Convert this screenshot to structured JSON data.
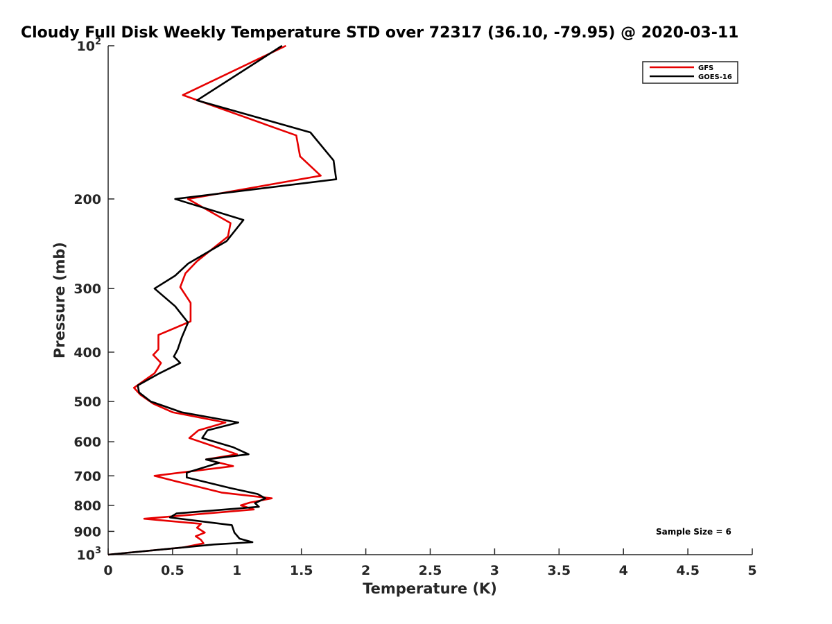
{
  "chart_data": {
    "type": "line",
    "title": "Cloudy Full Disk Weekly Temperature STD over 72317 (36.10, -79.95) @ 2020-03-11",
    "xlabel": "Temperature (K)",
    "ylabel": "Pressure (mb)",
    "xlim": [
      0,
      5
    ],
    "ylim": [
      1000,
      100
    ],
    "yscale": "log",
    "y_reversed": true,
    "x_ticks": [
      "0",
      "0.5",
      "1",
      "1.5",
      "2",
      "2.5",
      "3",
      "3.5",
      "4",
      "4.5",
      "5"
    ],
    "y_ticks": [
      {
        "value": 100,
        "label": "10",
        "sup": "2"
      },
      {
        "value": 200,
        "label": "200"
      },
      {
        "value": 300,
        "label": "300"
      },
      {
        "value": 400,
        "label": "400"
      },
      {
        "value": 500,
        "label": "500"
      },
      {
        "value": 600,
        "label": "600"
      },
      {
        "value": 700,
        "label": "700"
      },
      {
        "value": 800,
        "label": "800"
      },
      {
        "value": 900,
        "label": "900"
      },
      {
        "value": 1000,
        "label": "10",
        "sup": "3"
      }
    ],
    "grid": false,
    "legend_position": "top-right",
    "annotation": "Sample Size = 6",
    "series": [
      {
        "name": "GFS",
        "color": "#e60000",
        "points": [
          [
            1.38,
            100
          ],
          [
            0.58,
            125
          ],
          [
            1.46,
            150
          ],
          [
            1.49,
            165
          ],
          [
            1.65,
            180
          ],
          [
            0.62,
            200
          ],
          [
            0.95,
            223
          ],
          [
            0.93,
            237
          ],
          [
            0.69,
            265
          ],
          [
            0.6,
            280
          ],
          [
            0.56,
            298
          ],
          [
            0.64,
            320
          ],
          [
            0.64,
            348
          ],
          [
            0.39,
            370
          ],
          [
            0.39,
            395
          ],
          [
            0.35,
            405
          ],
          [
            0.41,
            420
          ],
          [
            0.36,
            440
          ],
          [
            0.2,
            470
          ],
          [
            0.25,
            485
          ],
          [
            0.35,
            505
          ],
          [
            0.5,
            525
          ],
          [
            0.91,
            550
          ],
          [
            0.7,
            570
          ],
          [
            0.63,
            590
          ],
          [
            0.84,
            615
          ],
          [
            1.0,
            635
          ],
          [
            0.76,
            650
          ],
          [
            0.97,
            670
          ],
          [
            0.36,
            700
          ],
          [
            0.55,
            720
          ],
          [
            0.88,
            755
          ],
          [
            1.27,
            775
          ],
          [
            1.1,
            790
          ],
          [
            1.03,
            800
          ],
          [
            1.13,
            815
          ],
          [
            0.28,
            850
          ],
          [
            0.72,
            870
          ],
          [
            0.69,
            885
          ],
          [
            0.75,
            905
          ],
          [
            0.68,
            920
          ],
          [
            0.72,
            935
          ],
          [
            0.74,
            950
          ],
          [
            0.58,
            968
          ],
          [
            0.0,
            1000
          ]
        ]
      },
      {
        "name": "GOES-16",
        "color": "#000000",
        "points": [
          [
            1.35,
            100
          ],
          [
            0.69,
            128
          ],
          [
            1.57,
            148
          ],
          [
            1.75,
            168
          ],
          [
            1.77,
            183
          ],
          [
            0.52,
            200
          ],
          [
            1.05,
            220
          ],
          [
            0.92,
            242
          ],
          [
            0.62,
            268
          ],
          [
            0.52,
            283
          ],
          [
            0.36,
            300
          ],
          [
            0.52,
            325
          ],
          [
            0.62,
            350
          ],
          [
            0.57,
            375
          ],
          [
            0.54,
            395
          ],
          [
            0.51,
            408
          ],
          [
            0.56,
            420
          ],
          [
            0.4,
            440
          ],
          [
            0.23,
            465
          ],
          [
            0.24,
            480
          ],
          [
            0.33,
            500
          ],
          [
            0.57,
            525
          ],
          [
            1.01,
            550
          ],
          [
            0.77,
            570
          ],
          [
            0.73,
            590
          ],
          [
            0.97,
            615
          ],
          [
            1.09,
            635
          ],
          [
            0.76,
            650
          ],
          [
            0.86,
            660
          ],
          [
            0.61,
            690
          ],
          [
            0.61,
            705
          ],
          [
            0.95,
            740
          ],
          [
            1.16,
            760
          ],
          [
            1.22,
            775
          ],
          [
            1.14,
            792
          ],
          [
            1.17,
            805
          ],
          [
            0.53,
            830
          ],
          [
            0.48,
            845
          ],
          [
            0.96,
            875
          ],
          [
            0.98,
            905
          ],
          [
            1.02,
            930
          ],
          [
            1.12,
            945
          ],
          [
            0.82,
            955
          ],
          [
            0.0,
            1000
          ]
        ]
      }
    ]
  }
}
